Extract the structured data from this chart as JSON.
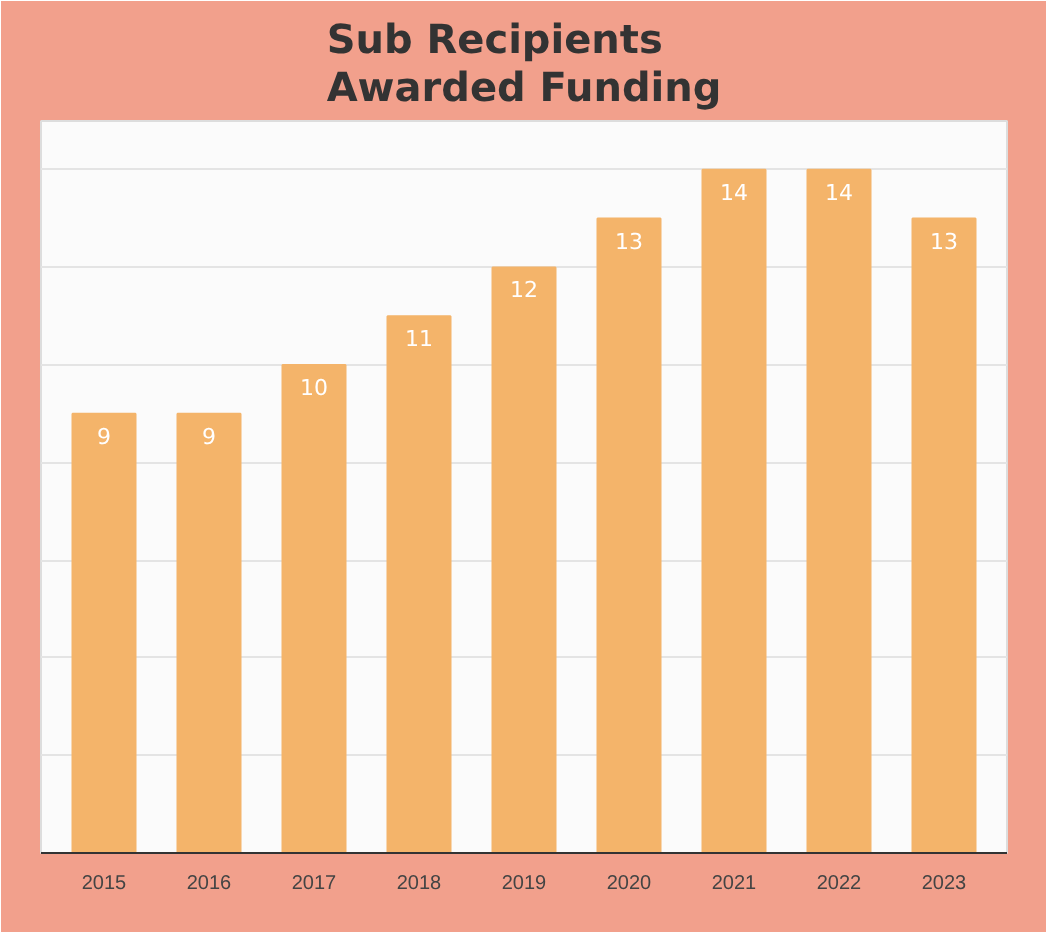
{
  "chart_data": {
    "type": "bar",
    "title": "Sub Recipients\nAwarded Funding",
    "categories": [
      "2015",
      "2016",
      "2017",
      "2018",
      "2019",
      "2020",
      "2021",
      "2022",
      "2023"
    ],
    "values": [
      9,
      9,
      10,
      11,
      12,
      13,
      14,
      14,
      13
    ],
    "color": "#f4b46a",
    "data_labels": true,
    "ylim": [
      0,
      15
    ],
    "yticks": [
      {
        "value": 0,
        "label": null
      },
      {
        "value": 2,
        "label": null
      },
      {
        "value": 4,
        "label": null
      },
      {
        "value": 6,
        "label": null
      },
      {
        "value": 8,
        "label": null
      },
      {
        "value": 10,
        "label": null
      },
      {
        "value": 12,
        "label": null
      },
      {
        "value": 14,
        "label": null
      }
    ],
    "grid": "y",
    "tick_labels": "x"
  }
}
